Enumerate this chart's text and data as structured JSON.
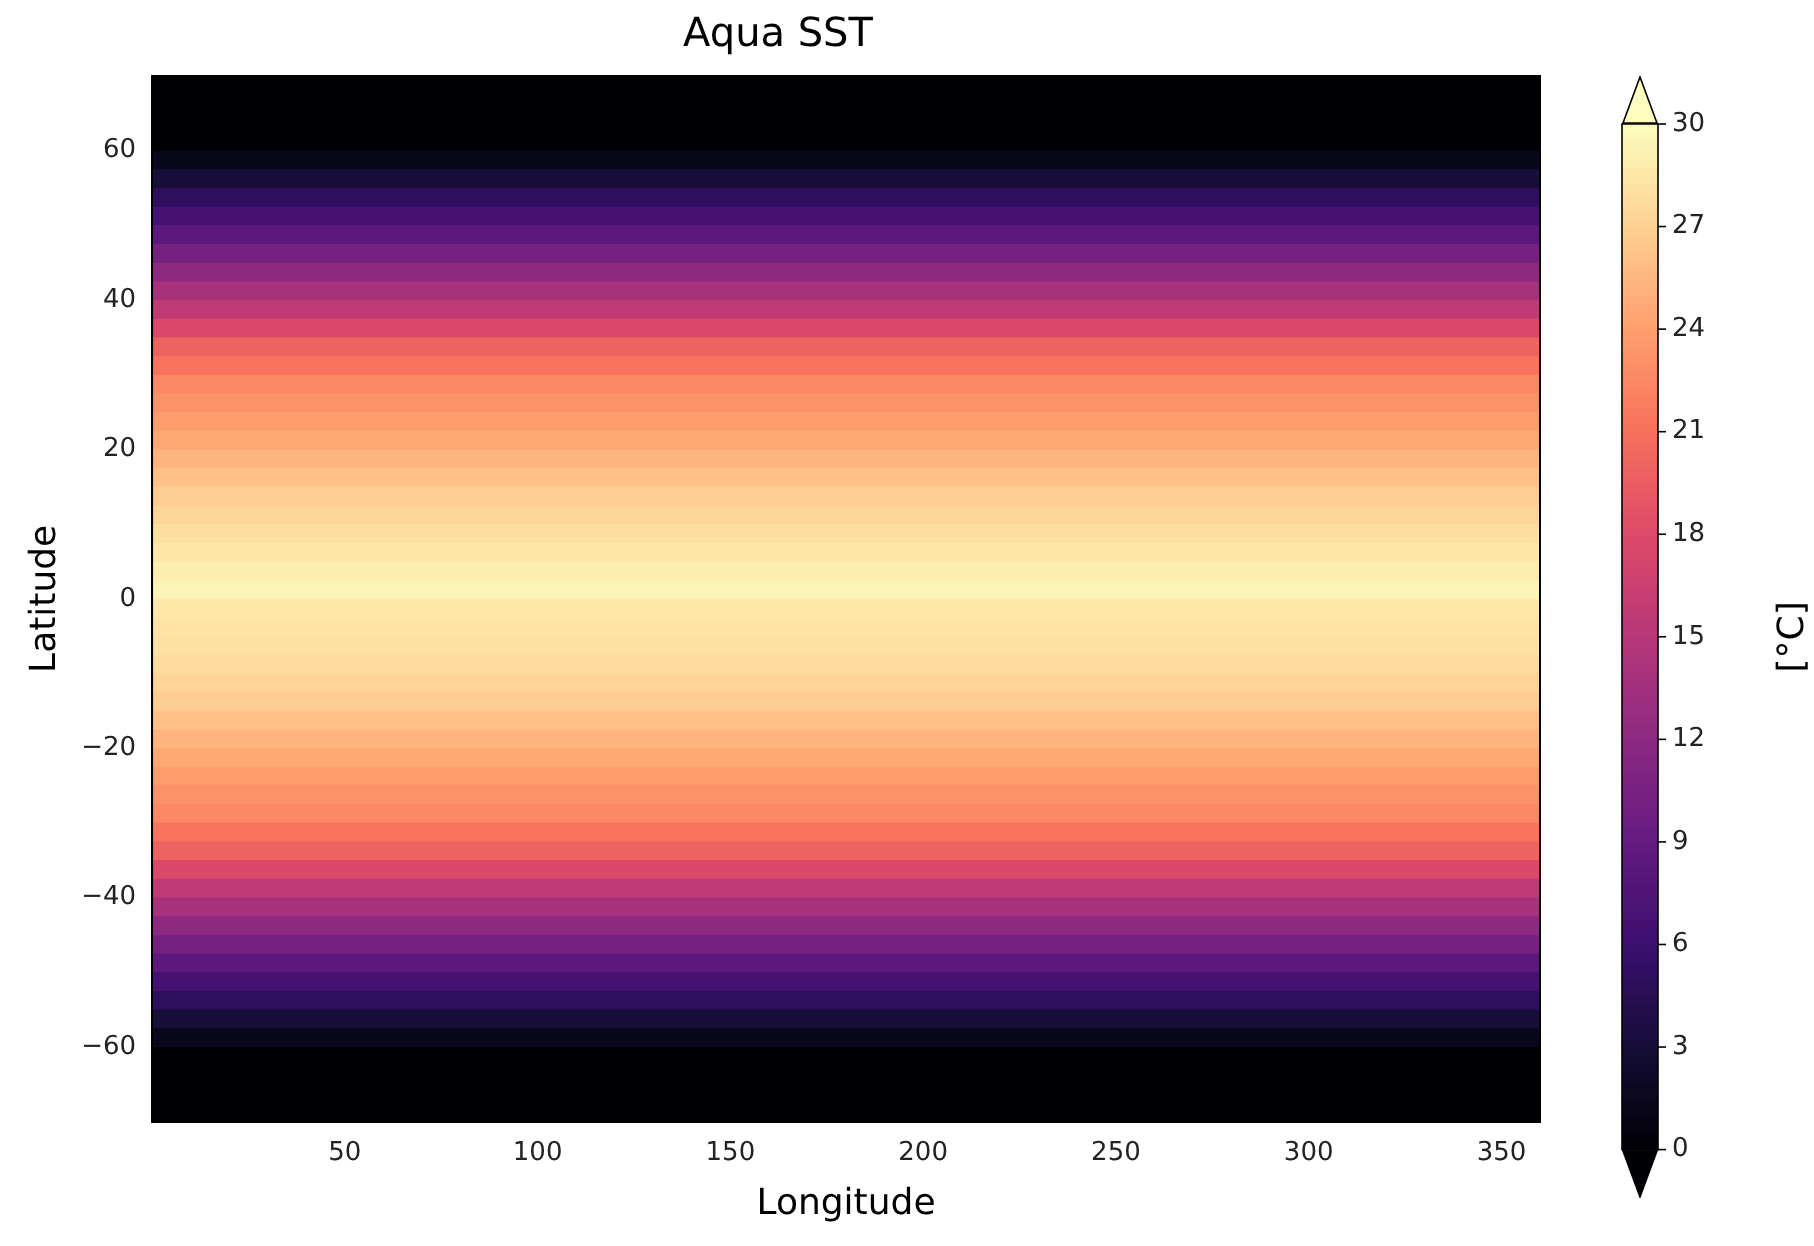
{
  "chart_data": {
    "type": "heatmap",
    "title": "Aqua SST",
    "xlabel": "Longitude",
    "ylabel": "Latitude",
    "clabel": "[°C]",
    "cells": [
      [
        0
      ],
      [
        0
      ],
      [
        0
      ],
      [
        0
      ],
      [
        1.4
      ],
      [
        3.2
      ],
      [
        5.0
      ],
      [
        6.7
      ],
      [
        8.5
      ],
      [
        10.3
      ],
      [
        12.1
      ],
      [
        13.9
      ],
      [
        15.7
      ],
      [
        17.8
      ],
      [
        19.9
      ],
      [
        21.2
      ],
      [
        22.6
      ],
      [
        23.2
      ],
      [
        23.9
      ],
      [
        24.6
      ],
      [
        25.4
      ],
      [
        26.1
      ],
      [
        26.9
      ],
      [
        27.4
      ],
      [
        28.0
      ],
      [
        28.5
      ],
      [
        29.0
      ],
      [
        29.4
      ],
      [
        28.6
      ],
      [
        28.3
      ],
      [
        28.1
      ],
      [
        27.8
      ],
      [
        27.3
      ],
      [
        26.9
      ],
      [
        26.1
      ],
      [
        25.4
      ],
      [
        24.6
      ],
      [
        23.9
      ],
      [
        23.2
      ],
      [
        22.6
      ],
      [
        21.2
      ],
      [
        19.9
      ],
      [
        17.8
      ],
      [
        15.7
      ],
      [
        13.9
      ],
      [
        12.1
      ],
      [
        10.3
      ],
      [
        8.5
      ],
      [
        6.7
      ],
      [
        5.0
      ],
      [
        3.2
      ],
      [
        1.4
      ],
      [
        0
      ],
      [
        0
      ],
      [
        0
      ],
      [
        0
      ]
    ],
    "clim": [
      0,
      30
    ],
    "cticks": [
      0,
      3,
      6,
      9,
      12,
      15,
      18,
      21,
      24,
      27,
      30
    ],
    "xlim": [
      0,
      360
    ],
    "xticks": [
      50,
      100,
      150,
      200,
      250,
      300,
      350
    ],
    "ylim": [
      -70,
      70
    ],
    "yticks": [
      -60,
      -40,
      -20,
      0,
      20,
      40,
      60
    ]
  }
}
